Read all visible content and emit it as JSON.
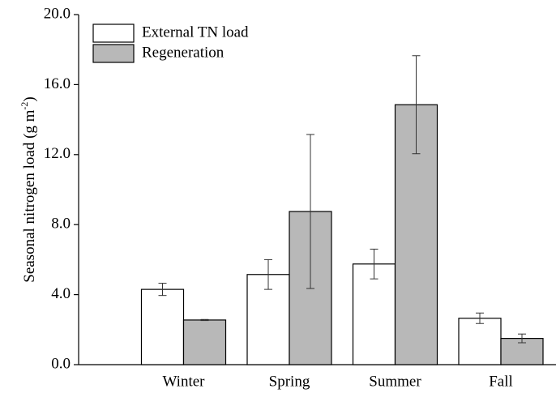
{
  "chart_data": {
    "type": "bar",
    "y_label_parts": [
      "Seasonal nitrogen load (g m",
      "-2",
      ")"
    ],
    "categories": [
      "Winter",
      "Spring",
      "Summer",
      "Fall"
    ],
    "series": [
      {
        "name": "External TN load",
        "color": "#ffffff",
        "values": [
          4.3,
          5.15,
          5.75,
          2.65
        ],
        "errors": [
          0.35,
          0.85,
          0.85,
          0.3
        ]
      },
      {
        "name": "Regeneration",
        "color": "#b8b8b8",
        "values": [
          2.55,
          8.75,
          14.85,
          1.5
        ],
        "errors": [
          0.03,
          4.4,
          2.8,
          0.25
        ]
      }
    ],
    "ylim": [
      0,
      20
    ],
    "yticks": [
      {
        "value": 0,
        "label": "0.0"
      },
      {
        "value": 4,
        "label": "4.0"
      },
      {
        "value": 8,
        "label": "8.0"
      },
      {
        "value": 12,
        "label": "12.0"
      },
      {
        "value": 16,
        "label": "16.0"
      },
      {
        "value": 20,
        "label": "20.0"
      }
    ],
    "legend": "upper left"
  }
}
